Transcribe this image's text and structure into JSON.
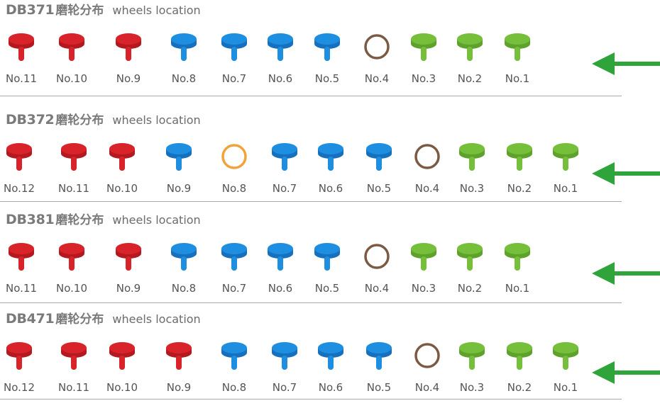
{
  "text": {
    "cn_label": "磨轮分布",
    "en_label": "wheels location"
  },
  "colors": {
    "red": "#d8232a",
    "red_dark": "#b51920",
    "blue": "#1e8fe0",
    "blue_dark": "#1670be",
    "green": "#76bf3a",
    "green_dark": "#5ea22c",
    "brown": "#7b5a44",
    "orange": "#f2a23a",
    "arrow": "#2ea43a",
    "divider": "#a9a9a9"
  },
  "sections": [
    {
      "model": "DB371",
      "arrow_icon": "arrow-left",
      "wheels": [
        {
          "label": "No.11",
          "kind": "pin",
          "color": "red"
        },
        {
          "label": "No.10",
          "kind": "pin",
          "color": "red"
        },
        {
          "label": "No.9",
          "kind": "pin",
          "color": "red"
        },
        {
          "label": "No.8",
          "kind": "pin",
          "color": "blue"
        },
        {
          "label": "No.7",
          "kind": "pin",
          "color": "blue"
        },
        {
          "label": "No.6",
          "kind": "pin",
          "color": "blue"
        },
        {
          "label": "No.5",
          "kind": "pin",
          "color": "blue"
        },
        {
          "label": "No.4",
          "kind": "ring",
          "color": "brown"
        },
        {
          "label": "No.3",
          "kind": "pin",
          "color": "green"
        },
        {
          "label": "No.2",
          "kind": "pin",
          "color": "green"
        },
        {
          "label": "No.1",
          "kind": "pin",
          "color": "green"
        }
      ]
    },
    {
      "model": "DB372",
      "arrow_icon": "arrow-left",
      "wheels": [
        {
          "label": "No.12",
          "kind": "pin",
          "color": "red"
        },
        {
          "label": "No.11",
          "kind": "pin",
          "color": "red"
        },
        {
          "label": "No.10",
          "kind": "pin",
          "color": "red"
        },
        {
          "label": "No.9",
          "kind": "pin",
          "color": "blue"
        },
        {
          "label": "No.8",
          "kind": "ring",
          "color": "orange"
        },
        {
          "label": "No.7",
          "kind": "pin",
          "color": "blue"
        },
        {
          "label": "No.6",
          "kind": "pin",
          "color": "blue"
        },
        {
          "label": "No.5",
          "kind": "pin",
          "color": "blue"
        },
        {
          "label": "No.4",
          "kind": "ring",
          "color": "brown"
        },
        {
          "label": "No.3",
          "kind": "pin",
          "color": "green"
        },
        {
          "label": "No.2",
          "kind": "pin",
          "color": "green"
        },
        {
          "label": "No.1",
          "kind": "pin",
          "color": "green"
        }
      ]
    },
    {
      "model": "DB381",
      "arrow_icon": "arrow-left",
      "wheels": [
        {
          "label": "No.11",
          "kind": "pin",
          "color": "red"
        },
        {
          "label": "No.10",
          "kind": "pin",
          "color": "red"
        },
        {
          "label": "No.9",
          "kind": "pin",
          "color": "red"
        },
        {
          "label": "No.8",
          "kind": "pin",
          "color": "blue"
        },
        {
          "label": "No.7",
          "kind": "pin",
          "color": "blue"
        },
        {
          "label": "No.6",
          "kind": "pin",
          "color": "blue"
        },
        {
          "label": "No.5",
          "kind": "pin",
          "color": "blue"
        },
        {
          "label": "No.4",
          "kind": "ring",
          "color": "brown"
        },
        {
          "label": "No.3",
          "kind": "pin",
          "color": "green"
        },
        {
          "label": "No.2",
          "kind": "pin",
          "color": "green"
        },
        {
          "label": "No.1",
          "kind": "pin",
          "color": "green"
        }
      ]
    },
    {
      "model": "DB471",
      "arrow_icon": "arrow-left",
      "wheels": [
        {
          "label": "No.12",
          "kind": "pin",
          "color": "red"
        },
        {
          "label": "No.11",
          "kind": "pin",
          "color": "red"
        },
        {
          "label": "No.10",
          "kind": "pin",
          "color": "red"
        },
        {
          "label": "No.9",
          "kind": "pin",
          "color": "red"
        },
        {
          "label": "No.8",
          "kind": "pin",
          "color": "blue"
        },
        {
          "label": "No.7",
          "kind": "pin",
          "color": "blue"
        },
        {
          "label": "No.6",
          "kind": "pin",
          "color": "blue"
        },
        {
          "label": "No.5",
          "kind": "pin",
          "color": "blue"
        },
        {
          "label": "No.4",
          "kind": "ring",
          "color": "brown"
        },
        {
          "label": "No.3",
          "kind": "pin",
          "color": "green"
        },
        {
          "label": "No.2",
          "kind": "pin",
          "color": "green"
        },
        {
          "label": "No.1",
          "kind": "pin",
          "color": "green"
        }
      ]
    }
  ]
}
